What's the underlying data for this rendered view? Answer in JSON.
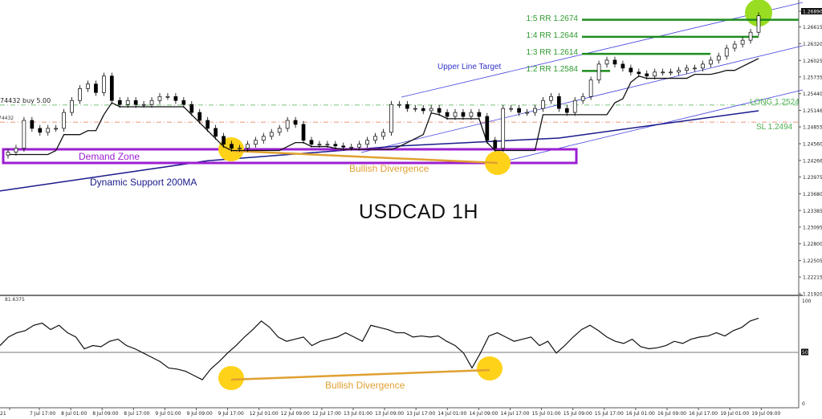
{
  "chart_data": [
    {
      "type": "candlestick",
      "title": "USDCAD 1H",
      "y_axis": {
        "ticks": [
          "1.26890",
          "1.26615",
          "1.26320",
          "1.26025",
          "1.25735",
          "1.25440",
          "1.25146",
          "1.24855",
          "1.24560",
          "1.24266",
          "1.23975",
          "1.23680",
          "1.23385",
          "1.23095",
          "1.22800",
          "1.22505",
          "1.22215",
          "1.21920"
        ],
        "current_price": "1.26890",
        "ylim": [
          1.2192,
          1.2689
        ]
      },
      "x_axis": {
        "ticks": [
          "21",
          "7 Jul 17:00",
          "8 Jul 01:00",
          "8 Jul 09:00",
          "8 Jul 17:00",
          "9 Jul 01:00",
          "9 Jul 09:00",
          "9 Jul 17:00",
          "12 Jul 01:00",
          "12 Jul 09:00",
          "12 Jul 17:00",
          "13 Jul 01:00",
          "13 Jul 09:00",
          "13 Jul 17:00",
          "14 Jul 01:00",
          "14 Jul 09:00",
          "14 Jul 17:00",
          "15 Jul 01:00",
          "15 Jul 09:00",
          "15 Jul 17:00",
          "16 Jul 01:00",
          "16 Jul 09:00",
          "16 Jul 17:00",
          "19 Jul 01:00",
          "19 Jul 09:00"
        ]
      },
      "closes": [
        1.2441,
        1.2448,
        1.2497,
        1.2483,
        1.2476,
        1.2483,
        1.2483,
        1.2511,
        1.2532,
        1.2553,
        1.2561,
        1.2546,
        1.2575,
        1.2532,
        1.2525,
        1.2532,
        1.2525,
        1.2525,
        1.2532,
        1.2539,
        1.2539,
        1.2532,
        1.2525,
        1.2511,
        1.2497,
        1.2483,
        1.2469,
        1.2455,
        1.2448,
        1.2448,
        1.2455,
        1.2462,
        1.2469,
        1.2476,
        1.2483,
        1.2497,
        1.249,
        1.2462,
        1.2455,
        1.2455,
        1.2455,
        1.2452,
        1.245,
        1.245,
        1.2455,
        1.2462,
        1.2469,
        1.2476,
        1.2525,
        1.2525,
        1.2518,
        1.2518,
        1.2514,
        1.2518,
        1.2511,
        1.2504,
        1.2511,
        1.2504,
        1.2511,
        1.2504,
        1.2462,
        1.2448,
        1.2518,
        1.2518,
        1.2511,
        1.2511,
        1.2518,
        1.2532,
        1.2539,
        1.2518,
        1.2511,
        1.2532,
        1.2539,
        1.2568,
        1.2596,
        1.2603,
        1.2596,
        1.2589,
        1.2582,
        1.2579,
        1.2575,
        1.2582,
        1.2582,
        1.2582,
        1.2585,
        1.2589,
        1.2589,
        1.2596,
        1.2603,
        1.261,
        1.2624,
        1.2631,
        1.2638,
        1.2652,
        1.2681
      ],
      "ma200": {
        "label": "Dynamic Support 200MA",
        "points": [
          [
            0,
            1.2373
          ],
          [
            25,
            1.2426
          ],
          [
            49,
            1.2452
          ],
          [
            69,
            1.2466
          ],
          [
            94,
            1.2514
          ]
        ],
        "color": "#1a1a8c"
      },
      "levels": [
        {
          "label": "LONG 1.2524",
          "price": 1.2524,
          "color": "#4caf50",
          "order_label": "74432 buy 5.00"
        },
        {
          "label": "SL 1.2494",
          "price": 1.2494,
          "color": "#e07050",
          "order_label": "74432"
        }
      ],
      "targets": [
        {
          "label": "1:2 RR 1.2584",
          "price": 1.2584
        },
        {
          "label": "1:3 RR 1.2614",
          "price": 1.2614
        },
        {
          "label": "1:4 RR 1.2644",
          "price": 1.2644
        },
        {
          "label": "1:5 RR 1.2674",
          "price": 1.2674
        }
      ],
      "annotations": {
        "demand_zone": "Demand Zone",
        "upper_line_target": "Upper Line Target",
        "bullish_divergence": "Bullish Divergence"
      },
      "colors": {
        "target": "#1e8c1e",
        "zone": "#9b1fd1",
        "divergence": "#e0a030",
        "highlight": "#ffd21a",
        "target_hit": "#99dd22",
        "channel": "#4040e0"
      }
    },
    {
      "type": "line",
      "indicator_value": "81.6375",
      "y_axis": {
        "ticks": [
          "100",
          "50",
          "0"
        ],
        "ylim": [
          0,
          100
        ]
      },
      "values": [
        56,
        64,
        68,
        70,
        75,
        77,
        71,
        75,
        68,
        64,
        53,
        56,
        55,
        60,
        62,
        56,
        53,
        49,
        45,
        41,
        35,
        34,
        32,
        28,
        24,
        34,
        41,
        49,
        56,
        64,
        71,
        79,
        73,
        64,
        60,
        62,
        64,
        56,
        60,
        62,
        64,
        68,
        64,
        60,
        75,
        73,
        71,
        68,
        68,
        64,
        65,
        64,
        65,
        60,
        56,
        49,
        35,
        49,
        65,
        68,
        64,
        60,
        62,
        64,
        56,
        60,
        49,
        56,
        64,
        71,
        75,
        70,
        64,
        60,
        58,
        62,
        55,
        53,
        54,
        56,
        60,
        58,
        62,
        64,
        65,
        68,
        65,
        70,
        73,
        79,
        81.6
      ],
      "divergence_label": "Bullish Divergence"
    }
  ]
}
